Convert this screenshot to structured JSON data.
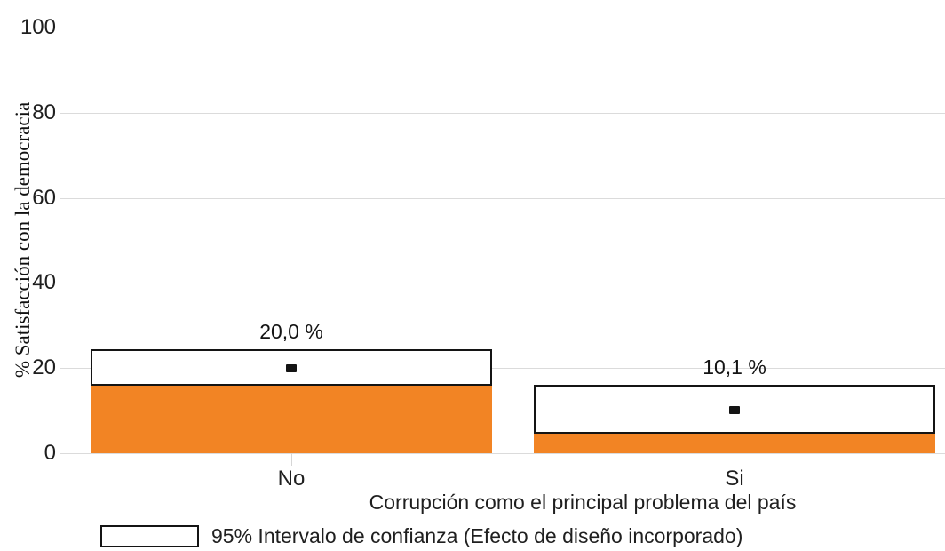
{
  "chart_data": {
    "type": "bar",
    "categories": [
      "No",
      "Si"
    ],
    "values": [
      20.0,
      10.1
    ],
    "value_labels": [
      "20,0 %",
      "10,1 %"
    ],
    "ci_95": [
      [
        15.9,
        24.4
      ],
      [
        4.6,
        16.1
      ]
    ],
    "y_ticks": [
      0,
      20,
      40,
      60,
      80,
      100
    ],
    "ylim": [
      0,
      105
    ],
    "xlabel": "Corrupción como el principal problema del país",
    "ylabel": "% Satisfacción con la democracia",
    "legend_entries": [
      "95% Intervalo de confianza (Efecto de diseño incorporado)"
    ],
    "legend_position": "bottom-left",
    "grid": "horizontal",
    "bar_color": "#F28424",
    "ci_box_fill": "#FFFFFF",
    "ci_box_border": "#141414",
    "marker_color": "#141414",
    "gridline_color": "#DBDBDB"
  }
}
